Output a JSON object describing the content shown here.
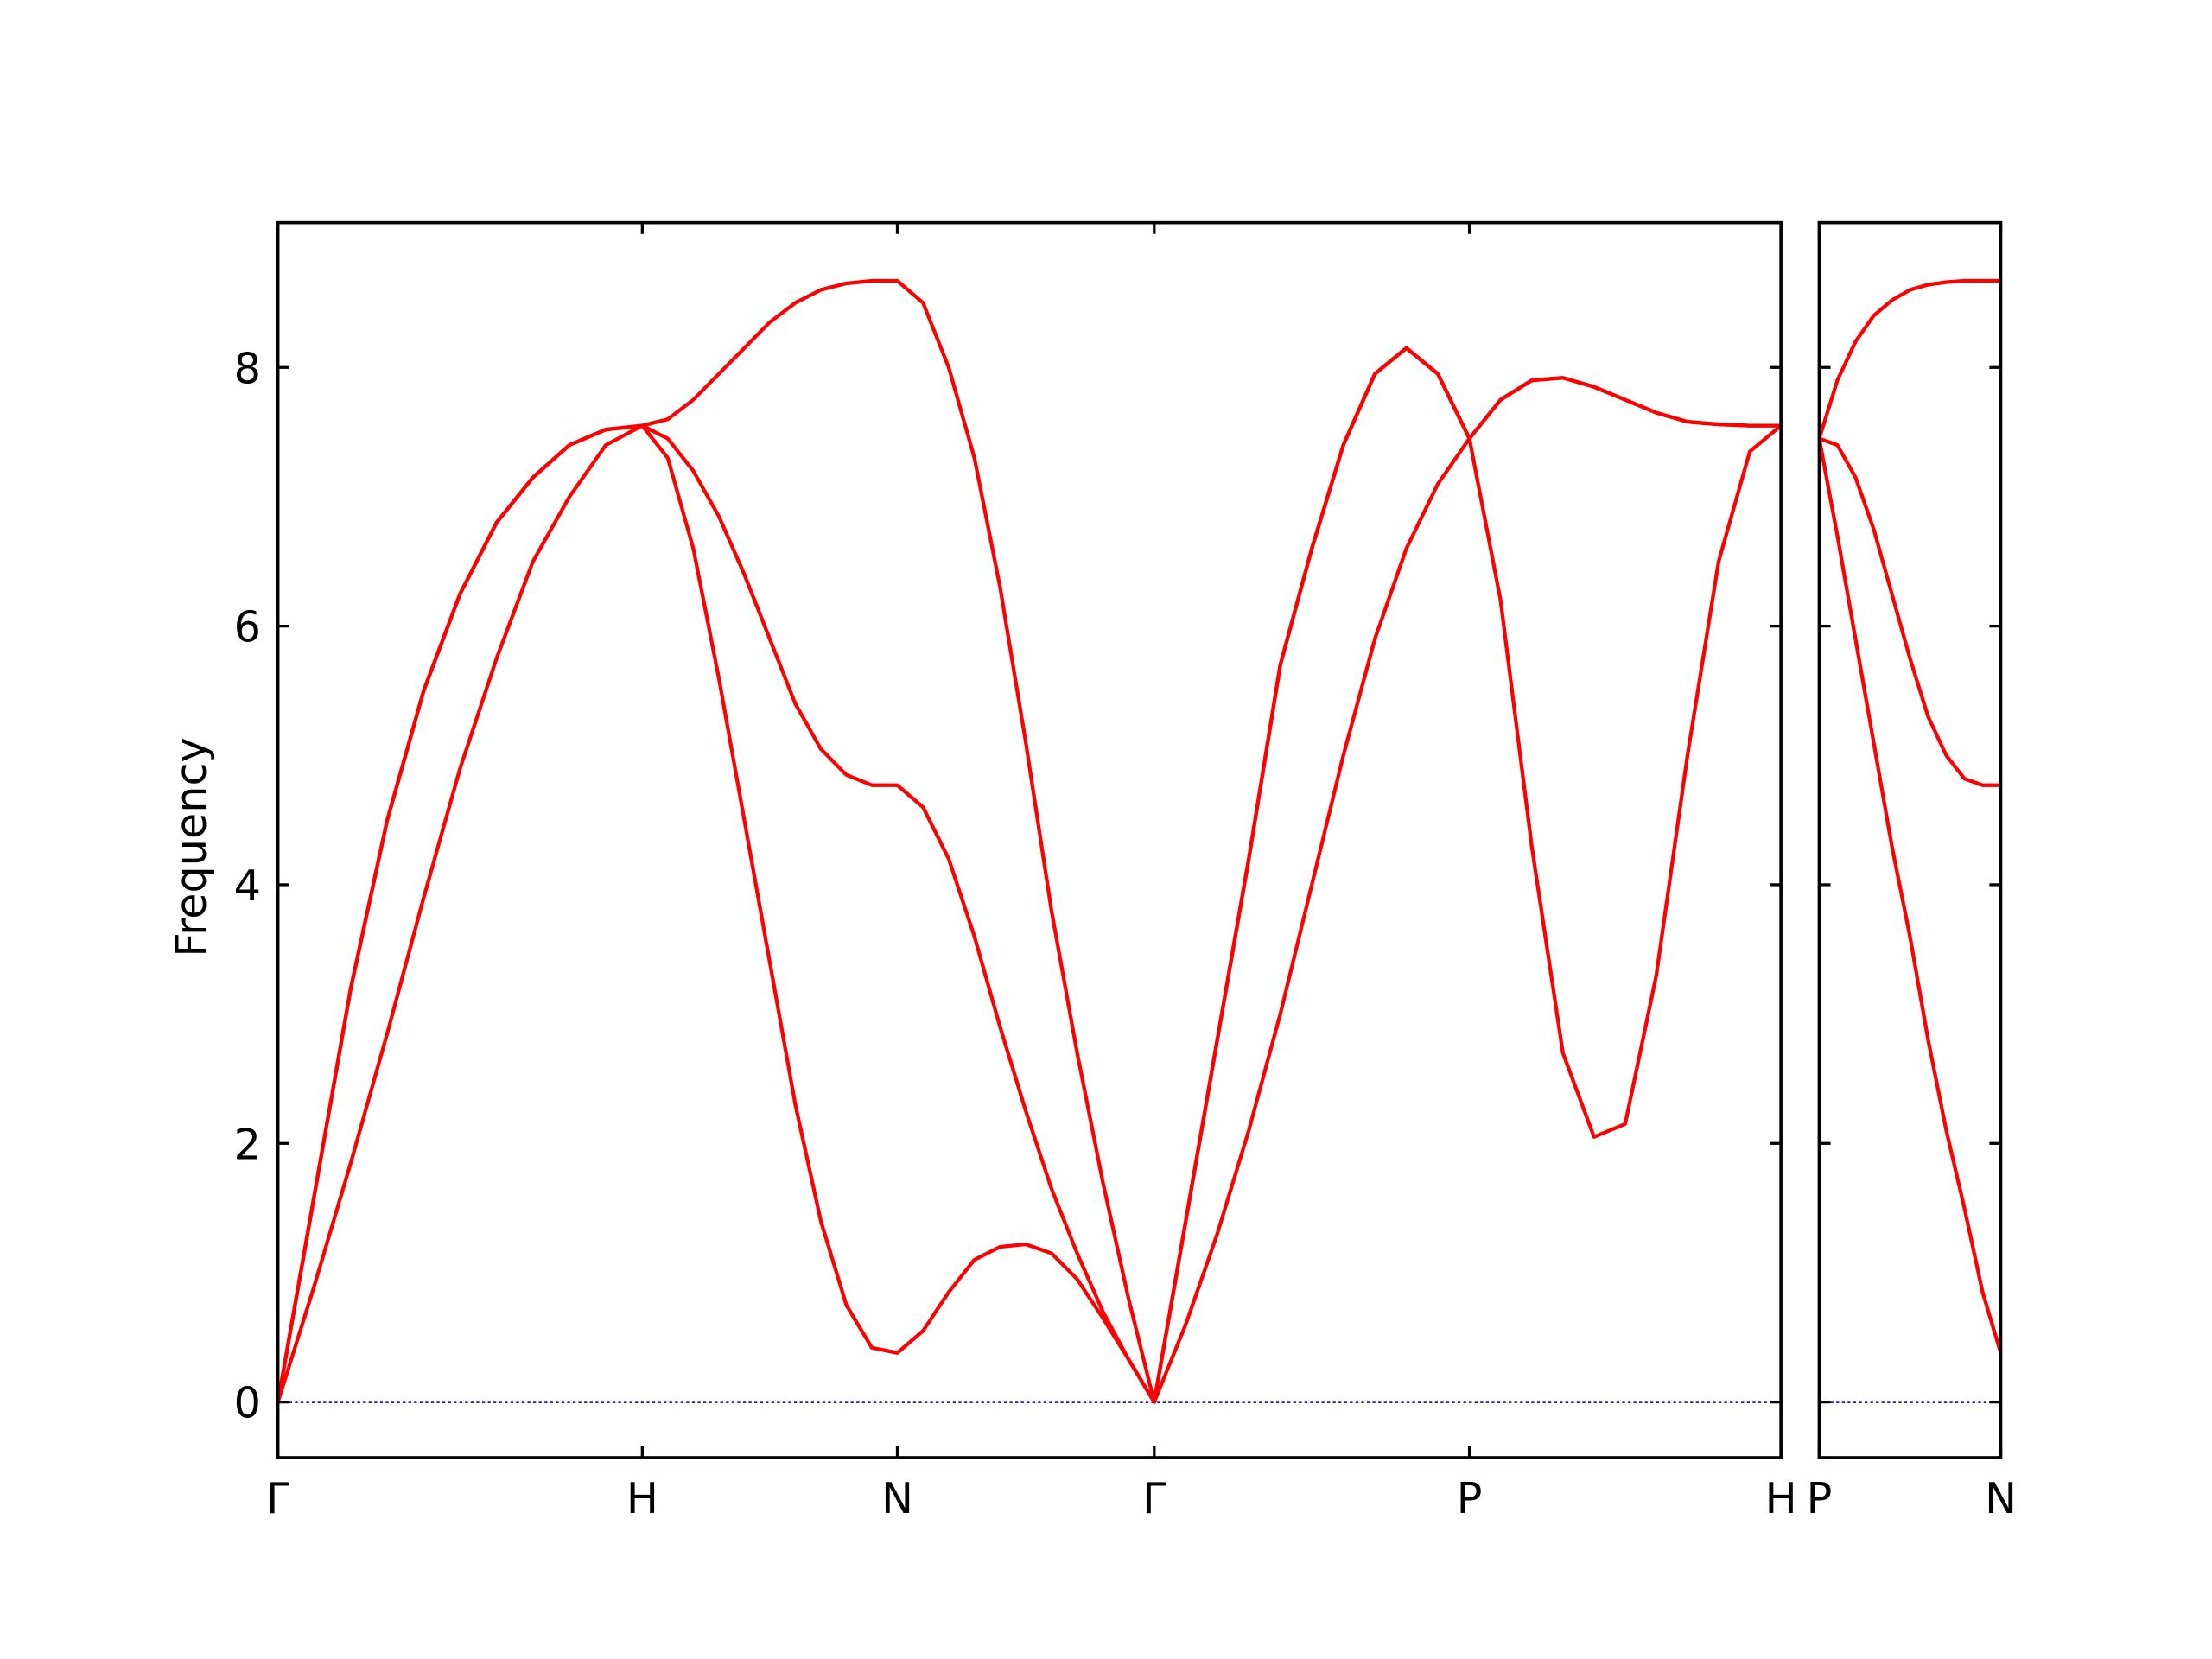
{
  "chart_data": [
    {
      "type": "line",
      "ylabel": "Frequency",
      "x": [
        0,
        0.1,
        0.2,
        0.3,
        0.4,
        0.5,
        0.6,
        0.7,
        0.8,
        0.9,
        1.0,
        1.07,
        1.14,
        1.21,
        1.28,
        1.35,
        1.42,
        1.49,
        1.56,
        1.63,
        1.7,
        1.7705,
        1.841,
        1.9115,
        1.982,
        2.0525,
        2.123,
        2.1935,
        2.264,
        2.3345,
        2.405,
        2.4915,
        2.578,
        2.6645,
        2.751,
        2.8375,
        2.924,
        3.0105,
        3.097,
        3.1835,
        3.27,
        3.3555,
        3.441,
        3.5265,
        3.612,
        3.6975,
        3.783,
        3.8685,
        3.954,
        4.0395,
        4.125
      ],
      "series": [
        {
          "color": "#ff0000",
          "values": [
            0,
            0.9,
            1.85,
            2.85,
            3.9,
            4.9,
            5.75,
            6.5,
            7.0,
            7.4,
            7.55,
            7.3,
            6.6,
            5.6,
            4.5,
            3.4,
            2.3,
            1.4,
            0.75,
            0.42,
            0.38,
            0.55,
            0.85,
            1.1,
            1.2,
            1.22,
            1.15,
            0.95,
            0.65,
            0.33,
            0,
            0.6,
            1.3,
            2.1,
            3.0,
            4.0,
            5.0,
            5.9,
            6.6,
            7.1,
            7.45,
            6.2,
            4.3,
            2.7,
            2.05,
            2.15,
            3.3,
            5.0,
            6.5,
            7.35,
            7.55
          ]
        },
        {
          "color": "#ff0000",
          "values": [
            0,
            1.6,
            3.2,
            4.5,
            5.5,
            6.25,
            6.8,
            7.15,
            7.4,
            7.52,
            7.55,
            7.45,
            7.2,
            6.85,
            6.4,
            5.9,
            5.4,
            5.05,
            4.85,
            4.77,
            4.77,
            4.6,
            4.2,
            3.6,
            2.9,
            2.25,
            1.65,
            1.15,
            0.7,
            0.33,
            0,
            1.4,
            2.8,
            4.2,
            5.7,
            6.6,
            7.4,
            7.95,
            8.15,
            7.95,
            7.45,
            7.75,
            7.9,
            7.92,
            7.85,
            7.75,
            7.65,
            7.58,
            7.56,
            7.55,
            7.55
          ]
        },
        {
          "color": "#ff0000",
          "values": [
            0,
            1.6,
            3.2,
            4.5,
            5.5,
            6.25,
            6.8,
            7.15,
            7.4,
            7.52,
            7.55,
            7.6,
            7.75,
            7.95,
            8.15,
            8.35,
            8.5,
            8.6,
            8.65,
            8.67,
            8.67,
            8.5,
            8.0,
            7.3,
            6.3,
            5.1,
            3.8,
            2.7,
            1.7,
            0.8,
            0,
            1.4,
            2.8,
            4.2,
            5.7,
            6.6,
            7.4,
            7.95,
            8.15,
            7.95,
            7.45,
            7.75,
            7.9,
            7.92,
            7.85,
            7.75,
            7.65,
            7.58,
            7.56,
            7.55,
            7.55
          ]
        }
      ],
      "hline": 0,
      "hline_color": "#000080",
      "xlim": [
        0,
        4.125
      ],
      "xticks": [
        {
          "value": 0,
          "label": "Γ"
        },
        {
          "value": 1.0,
          "label": "H"
        },
        {
          "value": 1.7,
          "label": "N"
        },
        {
          "value": 2.405,
          "label": "Γ"
        },
        {
          "value": 3.27,
          "label": "P"
        },
        {
          "value": 4.125,
          "label": "H"
        }
      ],
      "ylim": [
        -0.43,
        9.12
      ],
      "yticks": [
        0,
        2,
        4,
        6,
        8
      ],
      "ytick_labels": true
    },
    {
      "type": "line",
      "x": [
        4.125,
        4.175,
        4.225,
        4.275,
        4.325,
        4.375,
        4.425,
        4.475,
        4.525,
        4.575,
        4.625
      ],
      "series": [
        {
          "color": "#ff0000",
          "values": [
            7.45,
            6.7,
            5.9,
            5.1,
            4.3,
            3.6,
            2.8,
            2.1,
            1.5,
            0.85,
            0.38
          ]
        },
        {
          "color": "#ff0000",
          "values": [
            7.45,
            7.4,
            7.15,
            6.75,
            6.25,
            5.75,
            5.3,
            5.0,
            4.82,
            4.77,
            4.77
          ]
        },
        {
          "color": "#ff0000",
          "values": [
            7.45,
            7.9,
            8.2,
            8.4,
            8.52,
            8.6,
            8.64,
            8.66,
            8.67,
            8.67,
            8.67
          ]
        }
      ],
      "hline": 0,
      "hline_color": "#000080",
      "xlim": [
        4.125,
        4.625
      ],
      "xticks": [
        {
          "value": 4.125,
          "label": "P"
        },
        {
          "value": 4.625,
          "label": "N"
        }
      ],
      "ylim": [
        -0.43,
        9.12
      ],
      "yticks": [
        0,
        2,
        4,
        6,
        8
      ],
      "ytick_labels": false
    }
  ]
}
